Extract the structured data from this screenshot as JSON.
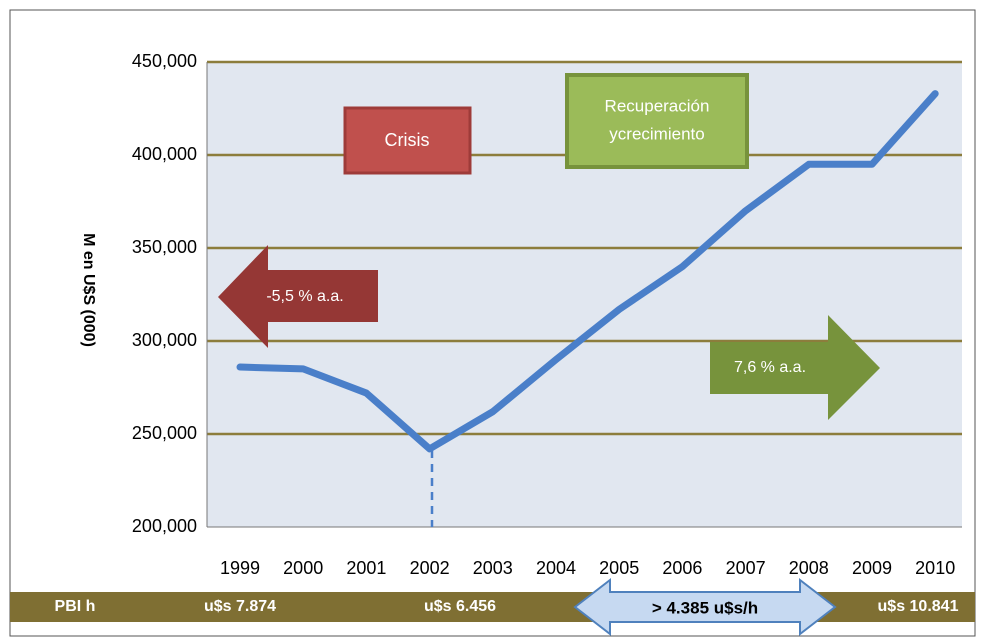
{
  "chart_data": {
    "type": "line",
    "y_axis_label": "M en U$S (000)",
    "categories": [
      "1999",
      "2000",
      "2001",
      "2002",
      "2003",
      "2004",
      "2005",
      "2006",
      "2007",
      "2008",
      "2009",
      "2010"
    ],
    "series": [
      {
        "name": "PBI",
        "color": "#4a7fc9",
        "values": [
          286000,
          285000,
          272000,
          242000,
          262000,
          290000,
          317000,
          340000,
          370000,
          395000,
          395000,
          433000
        ]
      }
    ],
    "ylim": [
      200000,
      450000
    ],
    "yticks": [
      {
        "value": 200000,
        "label": "200,000"
      },
      {
        "value": 250000,
        "label": "250,000"
      },
      {
        "value": 300000,
        "label": "300,000"
      },
      {
        "value": 350000,
        "label": "350,000"
      },
      {
        "value": 400000,
        "label": "400,000"
      },
      {
        "value": 450000,
        "label": "450,000"
      }
    ],
    "grid": true,
    "annotations": {
      "crisis": "Crisis",
      "recovery": [
        "Recuperación",
        "ycrecimiento"
      ],
      "decline_rate": "-5,5 % a.a.",
      "growth_rate": "7,6 % a.a."
    },
    "bottom_bar": {
      "label": "PBI h",
      "v1999": "u$s 7.874",
      "v2002": "u$s 6.456",
      "gap": "> 4.385 u$s/h",
      "v2010": "u$s 10.841"
    }
  }
}
